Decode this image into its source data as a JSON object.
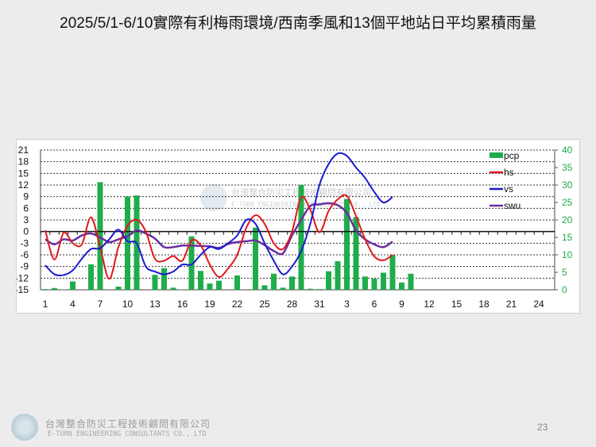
{
  "title": "2025/5/1-6/10實際有利梅雨環境/西南季風和13個平地站日平均累積雨量",
  "footer": {
    "company_cn": "台灣整合防災工程技術顧問有限公司",
    "company_en": "E-TURN ENGINEERING CONSULTANTS CO., LTD",
    "page": "23"
  },
  "watermark": {
    "cn": "台灣整合防災工程技術顧問有限公司",
    "en": "E-TURN ENGINEERING CONSULTANTS CO., LTD"
  },
  "chart_data": {
    "type": "bar+line",
    "title": "2025/5/1-6/10實際有利梅雨環境/西南季風和13個平地站日平均累積雨量",
    "x_ticks": [
      "1",
      "4",
      "7",
      "10",
      "13",
      "16",
      "19",
      "22",
      "25",
      "28",
      "31",
      "3",
      "6",
      "9",
      "12",
      "15",
      "18",
      "21",
      "24"
    ],
    "x_range": [
      1,
      55
    ],
    "left_axis": {
      "range": [
        -15,
        21
      ],
      "ticks": [
        "21",
        "18",
        "15",
        "12",
        "9",
        "6",
        "3",
        "0",
        "-3",
        "-6",
        "-9",
        "-12",
        "-15"
      ]
    },
    "right_axis": {
      "range": [
        0,
        40
      ],
      "ticks": [
        "40",
        "35",
        "30",
        "25",
        "20",
        "15",
        "10",
        "5",
        "0"
      ]
    },
    "legend": [
      "pcp",
      "hs",
      "vs",
      "swu"
    ],
    "legend_position": "top-right",
    "colors": {
      "pcp": "#1fad4b",
      "hs": "#e0191c",
      "vs": "#1a1ad0",
      "swu": "#6a2fa0"
    },
    "series": [
      {
        "name": "pcp",
        "axis": "right",
        "type": "bar",
        "values": [
          0.2,
          0.5,
          0.1,
          2.4,
          0,
          7.3,
          30.8,
          0,
          0.9,
          26.7,
          27,
          0,
          4.3,
          6.2,
          0.6,
          0.1,
          15.3,
          5.4,
          1.8,
          2.6,
          0,
          4.1,
          0,
          17.8,
          1.3,
          4.6,
          0.6,
          3.8,
          30,
          0.3,
          0.2,
          5.3,
          8.2,
          26,
          20.8,
          3.8,
          3.2,
          4.9,
          9.9,
          2.1,
          4.6
        ]
      },
      {
        "name": "hs",
        "axis": "left",
        "type": "line",
        "values": [
          0.3,
          -7.2,
          -0.3,
          -3,
          -3.3,
          3.7,
          -4,
          -12.2,
          -4,
          1.5,
          3,
          0,
          -7,
          -7.5,
          -6.3,
          -7.5,
          -2.3,
          -3.5,
          -8.5,
          -11.7,
          -9.5,
          -6,
          1,
          4.2,
          2,
          -3,
          -4.5,
          0,
          8.8,
          5.6,
          -0.2,
          5.3,
          8.3,
          9.2,
          4,
          -2,
          -6.4,
          -7.4,
          -6
        ]
      },
      {
        "name": "vs",
        "axis": "left",
        "type": "line",
        "values": [
          -8.7,
          -11,
          -11.2,
          -10,
          -7,
          -4.5,
          -4.3,
          -2,
          0.5,
          -2.5,
          -3,
          -9,
          -10.3,
          -11,
          -10.3,
          -8.5,
          -8.5,
          -6,
          -4,
          -4.5,
          -3,
          -1,
          3,
          2,
          -3,
          -7.5,
          -11,
          -9,
          -5,
          2,
          12,
          17.4,
          20.1,
          19.5,
          16.5,
          13.8,
          10.2,
          7.5,
          8.9
        ]
      },
      {
        "name": "swu",
        "axis": "left",
        "type": "line",
        "values": [
          -2,
          -3.3,
          -2,
          -2.3,
          -1,
          -0.5,
          -1.5,
          -2.7,
          -2,
          -1.2,
          0.3,
          -0.5,
          -1.8,
          -4,
          -4,
          -3.6,
          -3.6,
          -3.7,
          -3.8,
          -4.2,
          -3.2,
          -2.7,
          -2.5,
          -2.3,
          -3.5,
          -5,
          -5.6,
          -1,
          3,
          6.6,
          7,
          7.3,
          6.8,
          4.8,
          0.3,
          -2,
          -3.3,
          -4,
          -2.6
        ]
      }
    ]
  }
}
